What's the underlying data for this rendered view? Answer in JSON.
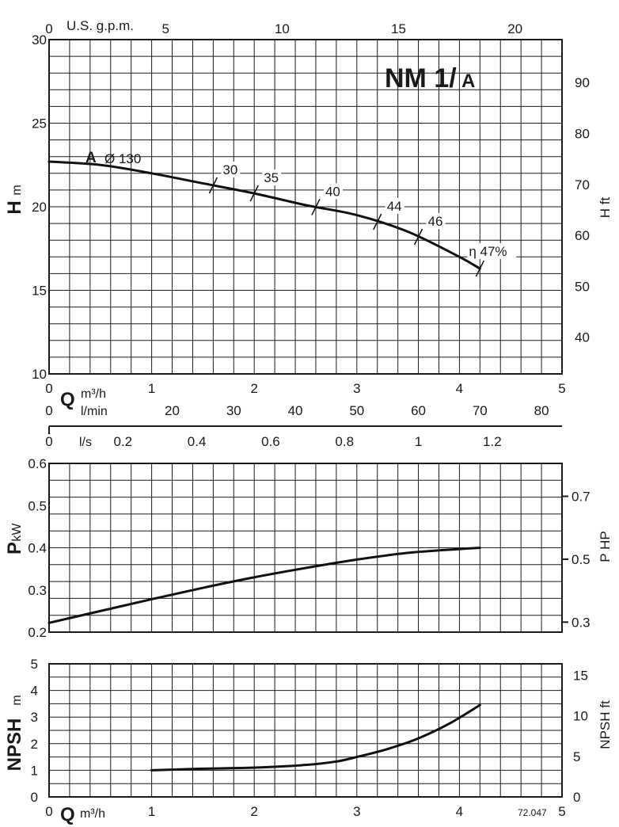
{
  "chart_data": [
    {
      "type": "line",
      "model": "NM 1/",
      "model_suffix": "A",
      "impeller_letter": "A",
      "impeller_diameter": "Ø 130",
      "xlabel_flow": "Q",
      "xunit_flow": "m³/h",
      "xlabel_gpm": "U.S. g.p.m.",
      "xlabel_lmin": "l/min",
      "xlabel_ls": "l/s",
      "ylabel": "H",
      "yunit": "m",
      "ylabel_right": "H ft",
      "xlim": [
        0,
        5
      ],
      "ylim": [
        10,
        30
      ],
      "x_ticks": [
        "0",
        "1",
        "2",
        "3",
        "4",
        "5"
      ],
      "y_ticks": [
        "10",
        "15",
        "20",
        "25",
        "30"
      ],
      "gpm_ticks": [
        {
          "v": 0,
          "label": "0"
        },
        {
          "v": 5,
          "label": "5"
        },
        {
          "v": 10,
          "label": "10"
        },
        {
          "v": 15,
          "label": "15"
        },
        {
          "v": 20,
          "label": "20"
        }
      ],
      "lmin_ticks": [
        {
          "v": 0,
          "label": "0"
        },
        {
          "v": 20,
          "label": "20"
        },
        {
          "v": 30,
          "label": "30"
        },
        {
          "v": 40,
          "label": "40"
        },
        {
          "v": 50,
          "label": "50"
        },
        {
          "v": 60,
          "label": "60"
        },
        {
          "v": 70,
          "label": "70"
        },
        {
          "v": 80,
          "label": "80"
        }
      ],
      "ls_ticks": [
        {
          "v": 0,
          "label": "0"
        },
        {
          "v": 0.2,
          "label": "0.2"
        },
        {
          "v": 0.4,
          "label": "0.4"
        },
        {
          "v": 0.6,
          "label": "0.6"
        },
        {
          "v": 0.8,
          "label": "0.8"
        },
        {
          "v": 1.0,
          "label": "1"
        },
        {
          "v": 1.2,
          "label": "1.2"
        }
      ],
      "ft_ticks": [
        {
          "v": 40,
          "label": "40"
        },
        {
          "v": 50,
          "label": "50"
        },
        {
          "v": 60,
          "label": "60"
        },
        {
          "v": 70,
          "label": "70"
        },
        {
          "v": 80,
          "label": "80"
        },
        {
          "v": 90,
          "label": "90"
        }
      ],
      "series": [
        {
          "x": [
            0,
            0.5,
            1.0,
            1.5,
            2.0,
            2.5,
            3.0,
            3.5,
            4.0,
            4.2
          ],
          "y": [
            22.7,
            22.5,
            22.0,
            21.4,
            20.8,
            20.1,
            19.5,
            18.5,
            17.0,
            16.3
          ]
        }
      ],
      "efficiency_marks": [
        {
          "q": 1.6,
          "label": "30"
        },
        {
          "q": 2.0,
          "label": "35"
        },
        {
          "q": 2.6,
          "label": "40"
        },
        {
          "q": 3.2,
          "label": "44"
        },
        {
          "q": 3.6,
          "label": "46"
        },
        {
          "q": 4.2,
          "label": "η 47%"
        }
      ]
    },
    {
      "type": "line",
      "ylabel": "P",
      "yunit": "kW",
      "ylabel_right": "P HP",
      "xlim": [
        0,
        5
      ],
      "ylim": [
        0.2,
        0.6
      ],
      "y_ticks": [
        "0.2",
        "0.3",
        "0.4",
        "0.5",
        "0.6"
      ],
      "hp_ticks": [
        {
          "v": 0.3,
          "label": "0.3"
        },
        {
          "v": 0.5,
          "label": "0.5"
        },
        {
          "v": 0.7,
          "label": "0.7"
        }
      ],
      "series": [
        {
          "x": [
            0,
            0.5,
            1.0,
            1.5,
            2.0,
            2.5,
            3.0,
            3.5,
            4.0,
            4.2
          ],
          "y": [
            0.222,
            0.25,
            0.278,
            0.305,
            0.33,
            0.352,
            0.372,
            0.388,
            0.397,
            0.4
          ]
        }
      ]
    },
    {
      "type": "line",
      "ylabel": "NPSH",
      "yunit": "m",
      "ylabel_right": "NPSH ft",
      "xlabel_flow": "Q",
      "xunit_flow": "m³/h",
      "xlim": [
        0,
        5
      ],
      "ylim": [
        0,
        5
      ],
      "x_ticks": [
        "0",
        "1",
        "2",
        "3",
        "4",
        "5"
      ],
      "y_ticks": [
        "0",
        "1",
        "2",
        "3",
        "4",
        "5"
      ],
      "npsh_ft_ticks": [
        {
          "v": 0,
          "label": "0"
        },
        {
          "v": 5,
          "label": "5"
        },
        {
          "v": 10,
          "label": "10"
        },
        {
          "v": 15,
          "label": "15"
        }
      ],
      "series": [
        {
          "x": [
            1.0,
            1.5,
            2.0,
            2.5,
            2.8,
            3.0,
            3.3,
            3.6,
            3.9,
            4.2
          ],
          "y": [
            1.0,
            1.06,
            1.1,
            1.2,
            1.33,
            1.5,
            1.8,
            2.2,
            2.75,
            3.45
          ]
        }
      ],
      "code": "72.047"
    }
  ]
}
